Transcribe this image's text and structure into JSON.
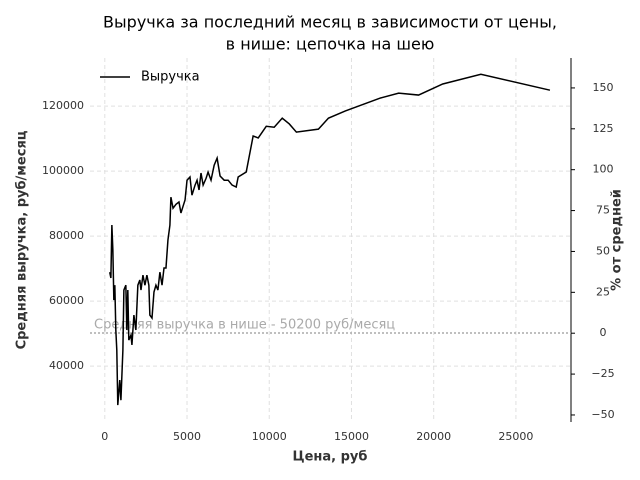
{
  "chart_data": {
    "type": "line",
    "title": [
      "Выручка за последний месяц в зависимости от цены,",
      "в нише: цепочка на шею"
    ],
    "x_label": "Цена, руб",
    "y_label": "Средняя выручка, руб/месяц",
    "y2_label": "% от средней",
    "x": [
      300,
      370,
      430,
      490,
      550,
      610,
      670,
      730,
      790,
      910,
      980,
      1100,
      1160,
      1280,
      1340,
      1400,
      1460,
      1590,
      1650,
      1770,
      1890,
      2010,
      2130,
      2200,
      2320,
      2440,
      2560,
      2680,
      2740,
      2870,
      2990,
      3110,
      3230,
      3350,
      3480,
      3600,
      3720,
      3840,
      3960,
      4020,
      4150,
      4330,
      4510,
      4630,
      4760,
      4880,
      5000,
      5180,
      5300,
      5490,
      5610,
      5730,
      5850,
      5980,
      6160,
      6280,
      6460,
      6650,
      6830,
      7010,
      7260,
      7500,
      7740,
      7990,
      8110,
      8600,
      9020,
      9330,
      9820,
      10300,
      10790,
      11220,
      11650,
      12990,
      13600,
      14630,
      16770,
      17870,
      19080,
      20550,
      22870,
      27070
    ],
    "series": [
      {
        "name": "Выручка",
        "color": "#000000",
        "values": [
          68900,
          67100,
          83400,
          75700,
          60300,
          64900,
          51100,
          44900,
          28000,
          35700,
          29500,
          44900,
          63400,
          64900,
          51100,
          63400,
          48000,
          49500,
          46500,
          55700,
          51100,
          64900,
          66500,
          63400,
          68000,
          64900,
          68000,
          64900,
          55700,
          54800,
          62800,
          64900,
          63400,
          68900,
          64900,
          70200,
          70200,
          78800,
          83400,
          92000,
          88600,
          89800,
          90500,
          87100,
          89200,
          91100,
          97200,
          98200,
          92600,
          95700,
          97200,
          94200,
          99400,
          95700,
          97800,
          99700,
          97200,
          101800,
          104000,
          98500,
          97200,
          97200,
          95700,
          95100,
          98200,
          99700,
          110800,
          110200,
          113800,
          113500,
          116300,
          114500,
          112000,
          112900,
          116300,
          118500,
          122500,
          124000,
          123400,
          126800,
          129800,
          124900
        ]
      }
    ],
    "hline": 50200,
    "hline_color": "#aaaaaa",
    "annotation": "Средняя выручка в нише - 50200 руб/месяц",
    "xlim": [
      -900,
      28350
    ],
    "xticks": [
      0,
      5000,
      10000,
      15000,
      20000,
      25000
    ],
    "ylim": [
      22800,
      134800
    ],
    "yticks": [
      40000,
      60000,
      80000,
      100000,
      120000
    ],
    "y2lim": [
      -54.3,
      168.3
    ],
    "y2ticks": [
      {
        "value": -50,
        "label": "−50"
      },
      {
        "value": -25,
        "label": "−25"
      },
      0,
      25,
      50,
      75,
      100,
      125,
      150
    ],
    "grid": true,
    "legend": "upper left"
  }
}
